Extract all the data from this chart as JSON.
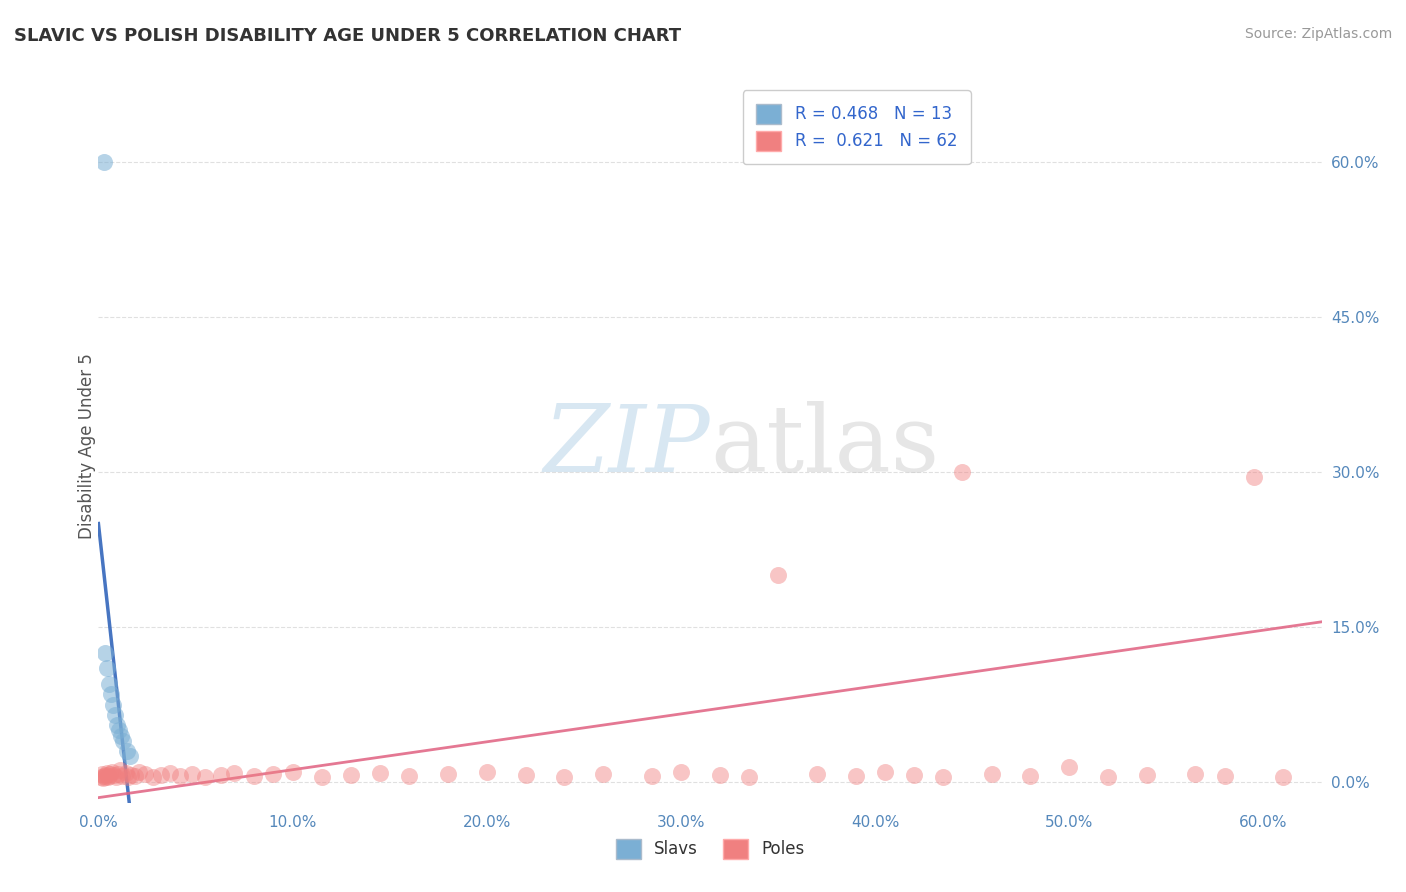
{
  "title": "SLAVIC VS POLISH DISABILITY AGE UNDER 5 CORRELATION CHART",
  "source": "Source: ZipAtlas.com",
  "ylabel_label": "Disability Age Under 5",
  "xlim": [
    0.0,
    63.0
  ],
  "ylim": [
    -2.0,
    67.0
  ],
  "ytick_vals": [
    0,
    15,
    30,
    45,
    60
  ],
  "xtick_vals": [
    0,
    10,
    20,
    30,
    40,
    50,
    60
  ],
  "slavs_R": 0.468,
  "slavs_N": 13,
  "poles_R": 0.621,
  "poles_N": 62,
  "slavs_color": "#7BAFD4",
  "poles_color": "#F08080",
  "slavs_line_color": "#3366BB",
  "slavs_dashed_color": "#88AADD",
  "poles_line_color": "#E06080",
  "grid_color": "#DDDDDD",
  "slavs_x": [
    0.28,
    0.35,
    0.45,
    0.55,
    0.65,
    0.75,
    0.85,
    0.95,
    1.05,
    1.15,
    1.25,
    1.45,
    1.65
  ],
  "slavs_y": [
    60.0,
    12.5,
    11.0,
    9.5,
    8.5,
    7.5,
    6.5,
    5.5,
    5.0,
    4.5,
    4.0,
    3.0,
    2.5
  ],
  "poles_x": [
    0.15,
    0.2,
    0.25,
    0.3,
    0.35,
    0.4,
    0.45,
    0.5,
    0.55,
    0.6,
    0.7,
    0.8,
    0.9,
    1.0,
    1.1,
    1.2,
    1.4,
    1.5,
    1.7,
    1.9,
    2.1,
    2.4,
    2.8,
    3.2,
    3.7,
    4.2,
    4.8,
    5.5,
    6.3,
    7.0,
    8.0,
    9.0,
    10.0,
    11.5,
    13.0,
    14.5,
    16.0,
    18.0,
    20.0,
    22.0,
    24.0,
    26.0,
    28.5,
    30.0,
    32.0,
    33.5,
    35.0,
    37.0,
    39.0,
    40.5,
    42.0,
    43.5,
    44.5,
    46.0,
    48.0,
    50.0,
    52.0,
    54.0,
    56.5,
    58.0,
    59.5,
    61.0
  ],
  "poles_y": [
    0.5,
    0.8,
    0.4,
    0.6,
    0.5,
    0.7,
    0.9,
    0.5,
    0.6,
    0.8,
    1.0,
    0.7,
    0.5,
    0.8,
    1.2,
    0.6,
    0.9,
    0.5,
    0.7,
    0.6,
    1.0,
    0.8,
    0.5,
    0.7,
    0.9,
    0.6,
    0.8,
    0.5,
    0.7,
    0.9,
    0.6,
    0.8,
    1.0,
    0.5,
    0.7,
    0.9,
    0.6,
    0.8,
    1.0,
    0.7,
    0.5,
    0.8,
    0.6,
    1.0,
    0.7,
    0.5,
    20.0,
    0.8,
    0.6,
    1.0,
    0.7,
    0.5,
    30.0,
    0.8,
    0.6,
    1.5,
    0.5,
    0.7,
    0.8,
    0.6,
    29.5,
    0.5
  ],
  "slav_line_x0": 0.0,
  "slav_line_x1": 2.0,
  "slav_line_y0": 30.0,
  "slav_line_slope": -17.0,
  "slav_dash_x0": 0.5,
  "slav_dash_x1": 2.5,
  "pole_line_x0": 0.0,
  "pole_line_x1": 63.0,
  "pole_line_y0": -1.5,
  "pole_line_y1": 15.5
}
